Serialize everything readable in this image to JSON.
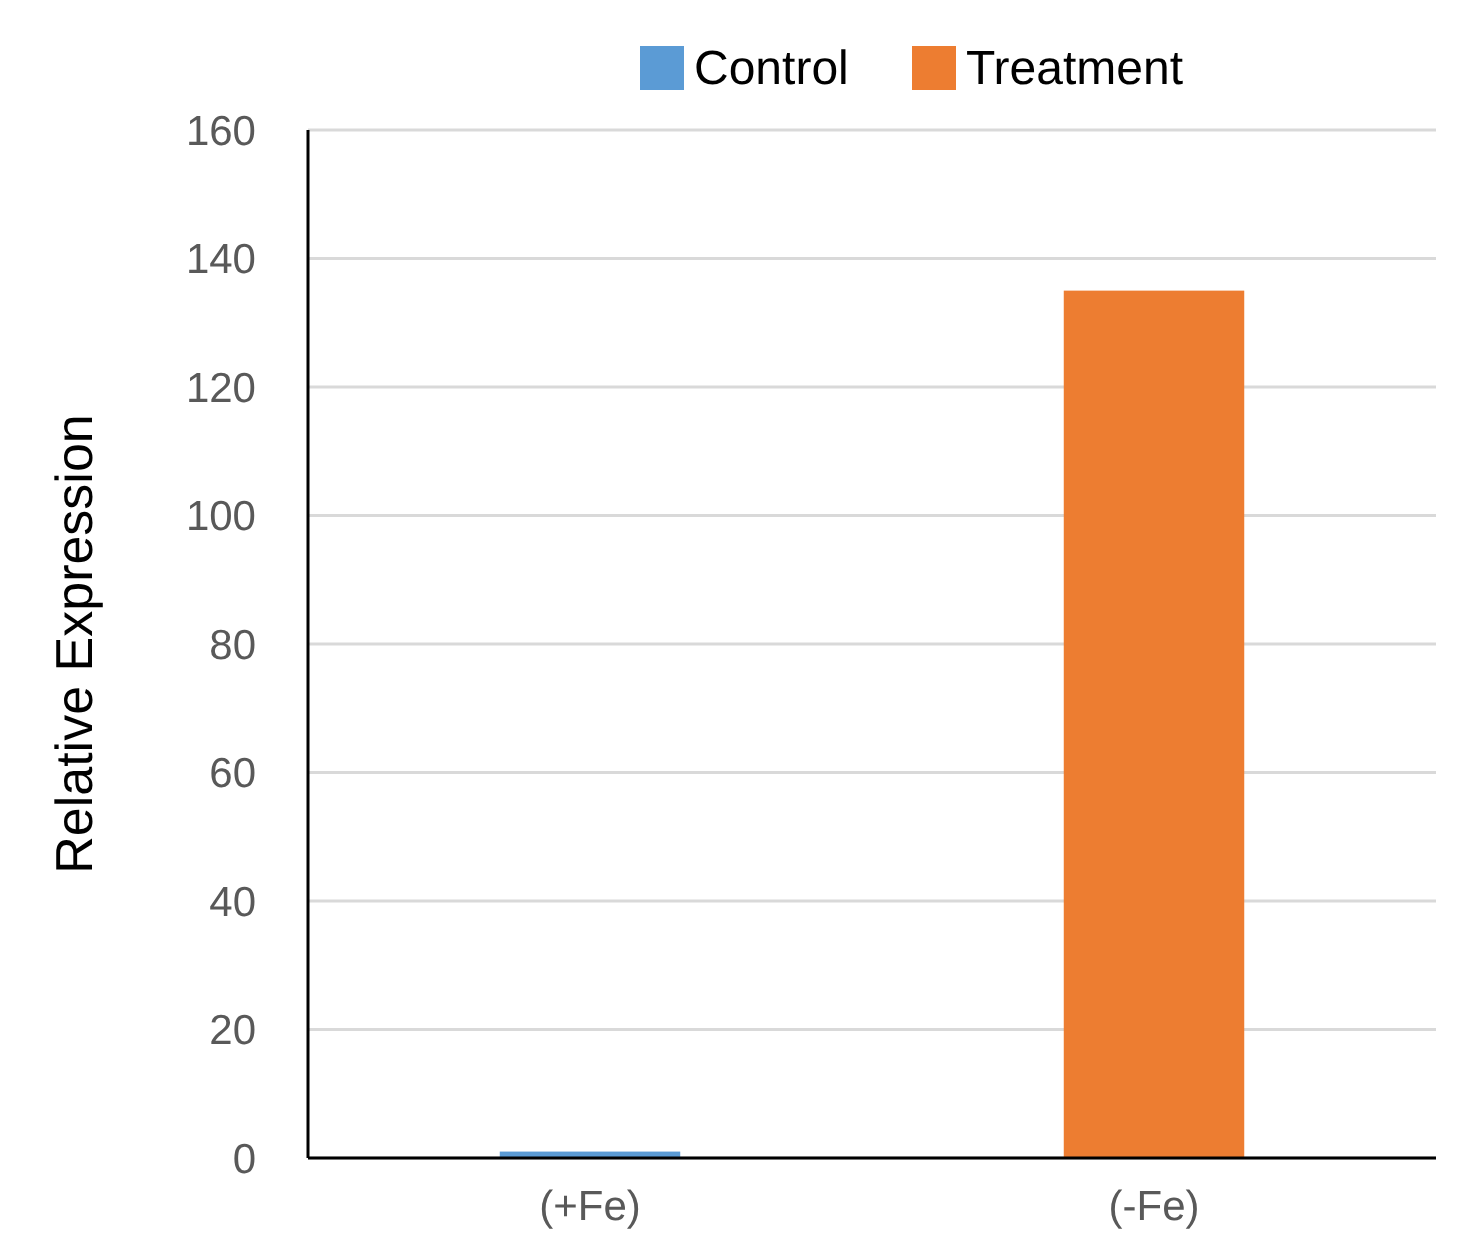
{
  "chart_data": {
    "type": "bar",
    "ylabel": "Relative Expression",
    "categories": [
      "(+Fe)",
      "(-Fe)"
    ],
    "stacked": true,
    "series": [
      {
        "name": "Control",
        "color": "#5b9bd5",
        "values": [
          1,
          null
        ]
      },
      {
        "name": "Treatment",
        "color": "#ed7d31",
        "values": [
          null,
          135
        ]
      }
    ],
    "ylim": [
      0,
      160
    ],
    "yticks": [
      0,
      20,
      40,
      60,
      80,
      100,
      120,
      140,
      160
    ],
    "grid": "y",
    "legend": "top"
  }
}
